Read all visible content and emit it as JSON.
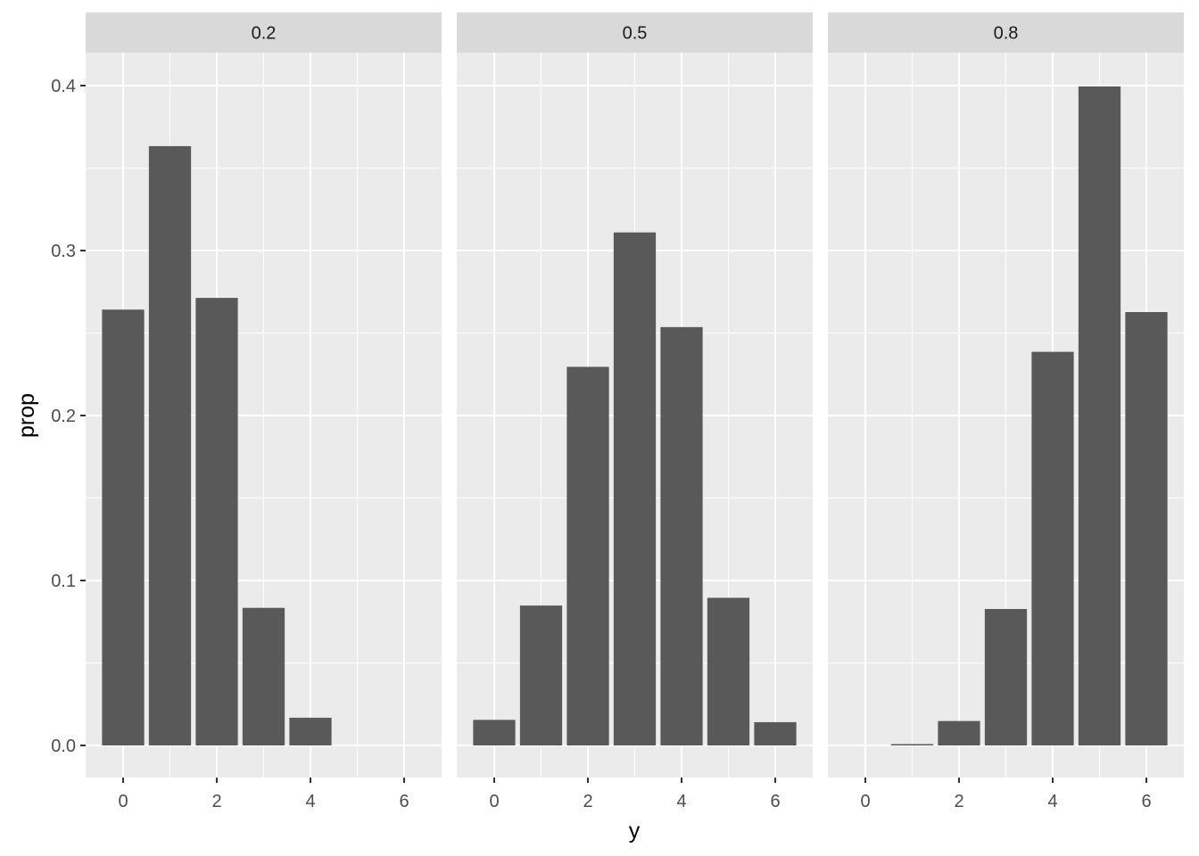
{
  "chart_data": {
    "type": "bar",
    "facet": "binomial-probability",
    "xlabel": "y",
    "ylabel": "prop",
    "ylim": [
      0,
      0.4
    ],
    "x_ticks": [
      0,
      2,
      4,
      6
    ],
    "y_ticks": [
      "0.0",
      "0.1",
      "0.2",
      "0.3",
      "0.4"
    ],
    "x_categories": [
      0,
      1,
      2,
      3,
      4,
      5,
      6
    ],
    "grid": true,
    "colors": {
      "bar": "#595959",
      "panel": "#ebebeb",
      "strip": "#d9d9d9",
      "grid": "#ffffff"
    },
    "facets": [
      {
        "label": "0.2",
        "values": [
          0.2642,
          0.3633,
          0.2713,
          0.0834,
          0.0168,
          0.0,
          0.0
        ]
      },
      {
        "label": "0.5",
        "values": [
          0.0155,
          0.0848,
          0.2295,
          0.311,
          0.2536,
          0.0895,
          0.0141
        ]
      },
      {
        "label": "0.8",
        "values": [
          0.0,
          0.0008,
          0.0148,
          0.0827,
          0.2386,
          0.3995,
          0.2627
        ]
      }
    ]
  }
}
